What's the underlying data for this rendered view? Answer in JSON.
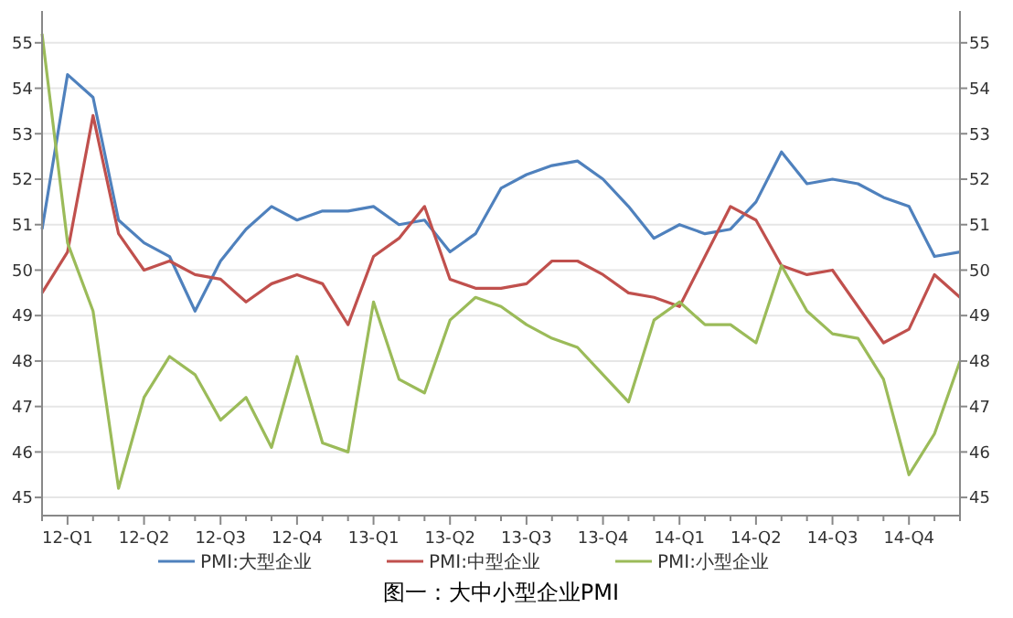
{
  "chart_data": {
    "type": "line",
    "title": "图一：大中小型企业PMI",
    "categories": [
      null,
      "12-Q1",
      null,
      null,
      "12-Q2",
      null,
      null,
      "12-Q3",
      null,
      null,
      "12-Q4",
      null,
      null,
      "13-Q1",
      null,
      null,
      "13-Q2",
      null,
      null,
      "13-Q3",
      null,
      null,
      "13-Q4",
      null,
      null,
      "14-Q1",
      null,
      null,
      "14-Q2",
      null,
      null,
      "14-Q3",
      null,
      null,
      "14-Q4",
      null,
      null
    ],
    "series": [
      {
        "name": "PMI:大型企业",
        "color": "#4f81bd",
        "values": [
          50.9,
          54.3,
          53.8,
          51.1,
          50.6,
          50.3,
          49.1,
          50.2,
          50.9,
          51.4,
          51.1,
          51.3,
          51.3,
          51.4,
          51.0,
          51.1,
          50.4,
          50.8,
          51.8,
          52.1,
          52.3,
          52.4,
          52.0,
          51.4,
          50.7,
          51.0,
          50.8,
          50.9,
          51.5,
          52.6,
          51.9,
          52.0,
          51.9,
          51.6,
          51.4,
          50.3,
          50.4
        ]
      },
      {
        "name": "PMI:中型企业",
        "color": "#c0504d",
        "values": [
          49.5,
          50.4,
          53.4,
          50.8,
          50.0,
          50.2,
          49.9,
          49.8,
          49.3,
          49.7,
          49.9,
          49.7,
          48.8,
          50.3,
          50.7,
          51.4,
          49.8,
          49.6,
          49.6,
          49.7,
          50.2,
          50.2,
          49.9,
          49.5,
          49.4,
          49.2,
          50.3,
          51.4,
          51.1,
          50.1,
          49.9,
          50.0,
          49.2,
          48.4,
          48.7,
          49.9,
          49.4
        ]
      },
      {
        "name": "PMI:小型企业",
        "color": "#9bbb59",
        "values": [
          55.2,
          50.6,
          49.1,
          45.2,
          47.2,
          48.1,
          47.7,
          46.7,
          47.2,
          46.1,
          48.1,
          46.2,
          46.0,
          49.3,
          47.6,
          47.3,
          48.9,
          49.4,
          49.2,
          48.8,
          48.5,
          48.3,
          47.7,
          47.1,
          48.9,
          49.3,
          48.8,
          48.8,
          48.4,
          50.1,
          49.1,
          48.6,
          48.5,
          47.6,
          45.5,
          46.4,
          48.0
        ]
      }
    ],
    "ylim": [
      44.6,
      55.7
    ],
    "yticks": [
      45,
      46,
      47,
      48,
      49,
      50,
      51,
      52,
      53,
      54,
      55
    ],
    "y2lim": [
      44.6,
      55.7
    ],
    "y2ticks": [
      45,
      46,
      47,
      48,
      49,
      50,
      51,
      52,
      53,
      54,
      55
    ],
    "grid": "y",
    "legend": "bottom",
    "marker": "none",
    "line_style": "solid"
  }
}
